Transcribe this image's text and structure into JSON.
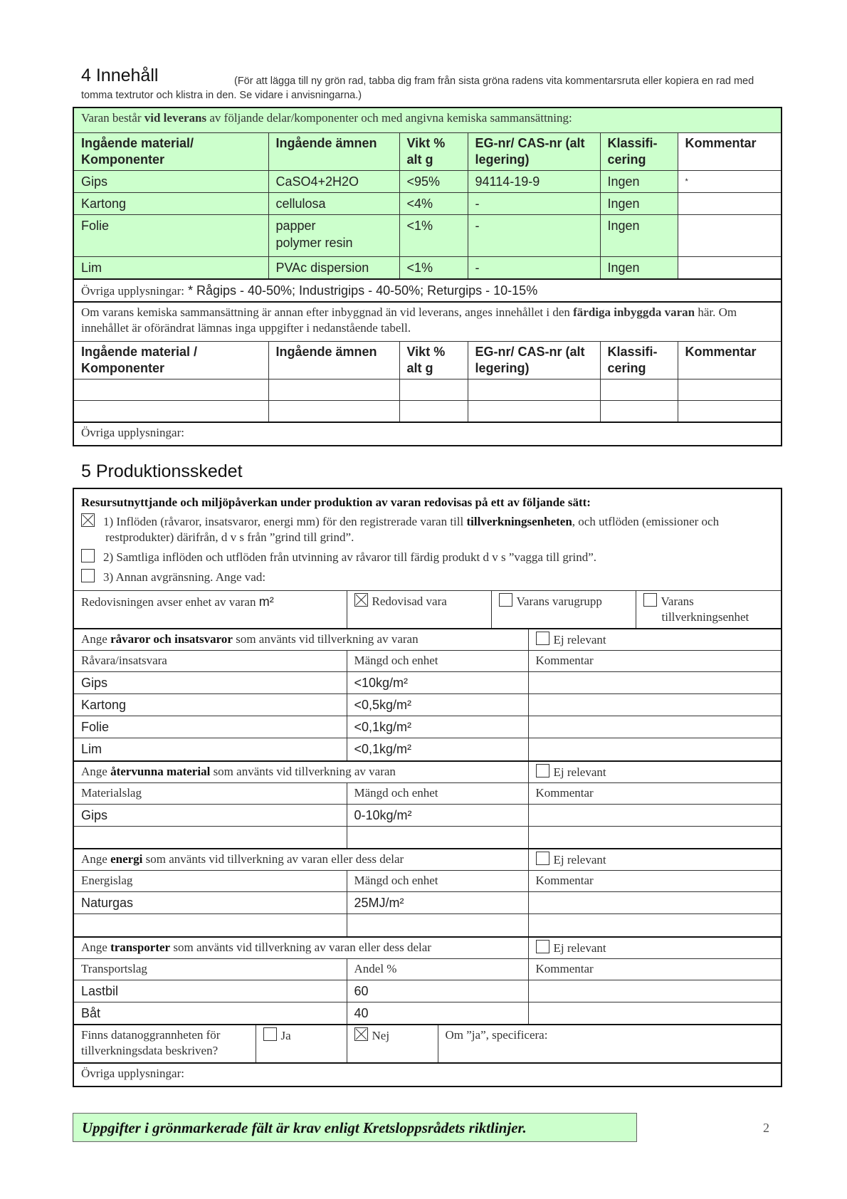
{
  "section4": {
    "heading": "4  Innehåll",
    "note": "(För att lägga till ny grön rad, tabba dig fram från sista gröna radens vita kommentarsruta eller kopiera en rad med tomma textrutor och klistra in den. Se vidare i anvisningarna.)",
    "intro_a": "Varan består ",
    "intro_b": "vid leverans",
    "intro_c": " av följande delar/komponenter och med angivna kemiska sammansättning:",
    "headers": [
      "Ingående material/ Komponenter",
      "Ingående ämnen",
      "Vikt % alt g",
      "EG-nr/ CAS-nr (alt legering)",
      "Klassifi- cering",
      "Kommentar"
    ],
    "rows": [
      [
        "Gips",
        "CaSO4+2H2O",
        "<95%",
        "94114-19-9",
        "Ingen",
        "*"
      ],
      [
        "Kartong",
        "cellulosa",
        "<4%",
        "-",
        "Ingen",
        ""
      ],
      [
        "Folie",
        "papper\npolymer resin",
        "<1%",
        "-",
        "Ingen",
        ""
      ],
      [
        "Lim",
        "PVAc dispersion",
        "<1%",
        "-",
        "Ingen",
        ""
      ]
    ],
    "other_label": "Övriga upplysningar:",
    "other_value": " * Rågips - 40-50%; Industrigips - 40-50%; Returgips - 10-15%",
    "built_a": "Om varans kemiska sammansättning är annan efter inbyggnad än vid leverans, anges innehållet i den ",
    "built_b": "färdiga inbyggda varan",
    "built_c": " här. Om innehållet är oförändrat lämnas inga uppgifter i nedanstående tabell.",
    "headers2": [
      "Ingående material / Komponenter",
      "Ingående ämnen",
      "Vikt % alt g",
      "EG-nr/ CAS-nr (alt legering)",
      "Klassifi- cering",
      "Kommentar"
    ],
    "other2_label": "Övriga upplysningar:"
  },
  "section5": {
    "heading": "5  Produktionsskedet",
    "intro": "Resursutnyttjande och miljöpåverkan under produktion av varan redovisas på ett av följande sätt:",
    "options": [
      {
        "checked": true,
        "a": "1) Inflöden (råvaror, insatsvaror, energi mm) för den registrerade varan till ",
        "b": "tillverkningsenheten",
        "c": ", och utflöden (emissioner och restprodukter) därifrån, d v s från ”grind till grind”."
      },
      {
        "checked": false,
        "a": "2) Samtliga inflöden och utflöden från utvinning av råvaror till färdig produkt d v s ”vagga till grind”.",
        "b": "",
        "c": ""
      },
      {
        "checked": false,
        "a": "3) Annan avgränsning. Ange vad:",
        "b": "",
        "c": ""
      }
    ],
    "unit_label": "Redovisningen avser enhet av varan ",
    "unit_value": "m²",
    "unit_options": [
      {
        "label": "Redovisad vara",
        "checked": true
      },
      {
        "label": "Varans varugrupp",
        "checked": false
      },
      {
        "label": "Varans tillverkningsenhet",
        "checked": false
      }
    ],
    "not_relevant": "Ej relevant",
    "groups": [
      {
        "a": "Ange ",
        "b": "råvaror och insatsvaror",
        "c": " som använts vid tillverkning av varan",
        "cols": [
          "Råvara/insatsvara",
          "Mängd och enhet",
          "Kommentar"
        ],
        "rows": [
          [
            "Gips",
            "<10kg/m²",
            ""
          ],
          [
            "Kartong",
            "<0,5kg/m²",
            ""
          ],
          [
            "Folie",
            "<0,1kg/m²",
            ""
          ],
          [
            "Lim",
            "<0,1kg/m²",
            ""
          ]
        ]
      },
      {
        "a": "Ange ",
        "b": "återvunna material",
        "c": " som använts vid tillverkning av varan",
        "cols": [
          "Materialslag",
          "Mängd och enhet",
          "Kommentar"
        ],
        "rows": [
          [
            "Gips",
            "0-10kg/m²",
            ""
          ],
          [
            "",
            "",
            ""
          ]
        ]
      },
      {
        "a": "Ange ",
        "b": "energi",
        "c": " som använts vid tillverkning av varan eller dess delar",
        "cols": [
          "Energislag",
          "Mängd och enhet",
          "Kommentar"
        ],
        "rows": [
          [
            "Naturgas",
            "25MJ/m²",
            ""
          ],
          [
            "",
            "",
            ""
          ]
        ]
      },
      {
        "a": "Ange ",
        "b": "transporter",
        "c": " som använts vid tillverkning av varan eller dess delar",
        "cols": [
          "Transportslag",
          "Andel %",
          "Kommentar"
        ],
        "rows": [
          [
            "Lastbil",
            "60",
            ""
          ],
          [
            "Båt",
            "40",
            ""
          ]
        ]
      }
    ],
    "accuracy_label": "Finns datanoggrannheten för tillverkningsdata beskriven?",
    "yes": "Ja",
    "yes_checked": false,
    "no": "Nej",
    "no_checked": true,
    "specify": "Om ”ja”, specificera:",
    "other_label": "Övriga upplysningar:"
  },
  "footer": {
    "text": "Uppgifter i grönmarkerade fält är krav enligt Kretsloppsrådets riktlinjer.",
    "page_number": "2"
  },
  "colors": {
    "required_field_green": "#ccffcc",
    "border": "#111111"
  }
}
